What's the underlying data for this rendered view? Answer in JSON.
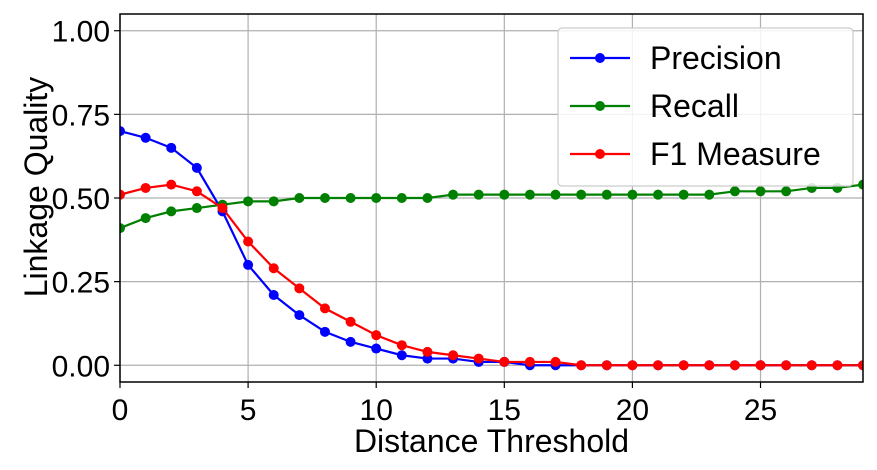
{
  "chart_data": {
    "type": "line",
    "title": "",
    "xlabel": "Distance Threshold",
    "ylabel": "Linkage Quality",
    "xlim": [
      0,
      29
    ],
    "ylim": [
      -0.05,
      1.05
    ],
    "xticks": [
      0,
      5,
      10,
      15,
      20,
      25
    ],
    "xtick_labels": [
      "0",
      "5",
      "10",
      "15",
      "20",
      "25"
    ],
    "yticks": [
      0.0,
      0.25,
      0.5,
      0.75,
      1.0
    ],
    "ytick_labels": [
      "0.00",
      "0.25",
      "0.50",
      "0.75",
      "1.00"
    ],
    "grid": true,
    "legend_position": "top-right",
    "x": [
      0,
      1,
      2,
      3,
      4,
      5,
      6,
      7,
      8,
      9,
      10,
      11,
      12,
      13,
      14,
      15,
      16,
      17,
      18,
      19,
      20,
      21,
      22,
      23,
      24,
      25,
      26,
      27,
      28,
      29
    ],
    "series": [
      {
        "name": "Precision",
        "color": "#0000ff",
        "values": [
          0.7,
          0.68,
          0.65,
          0.59,
          0.46,
          0.3,
          0.21,
          0.15,
          0.1,
          0.07,
          0.05,
          0.03,
          0.02,
          0.02,
          0.01,
          0.01,
          0.0,
          0.0,
          0.0,
          0.0,
          0.0,
          0.0,
          0.0,
          0.0,
          0.0,
          0.0,
          0.0,
          0.0,
          0.0,
          0.0
        ]
      },
      {
        "name": "Recall",
        "color": "#008000",
        "values": [
          0.41,
          0.44,
          0.46,
          0.47,
          0.48,
          0.49,
          0.49,
          0.5,
          0.5,
          0.5,
          0.5,
          0.5,
          0.5,
          0.51,
          0.51,
          0.51,
          0.51,
          0.51,
          0.51,
          0.51,
          0.51,
          0.51,
          0.51,
          0.51,
          0.52,
          0.52,
          0.52,
          0.53,
          0.53,
          0.54
        ]
      },
      {
        "name": "F1 Measure",
        "color": "#ff0000",
        "values": [
          0.51,
          0.53,
          0.54,
          0.52,
          0.47,
          0.37,
          0.29,
          0.23,
          0.17,
          0.13,
          0.09,
          0.06,
          0.04,
          0.03,
          0.02,
          0.01,
          0.01,
          0.01,
          0.0,
          0.0,
          0.0,
          0.0,
          0.0,
          0.0,
          0.0,
          0.0,
          0.0,
          0.0,
          0.0,
          0.0
        ]
      }
    ]
  }
}
